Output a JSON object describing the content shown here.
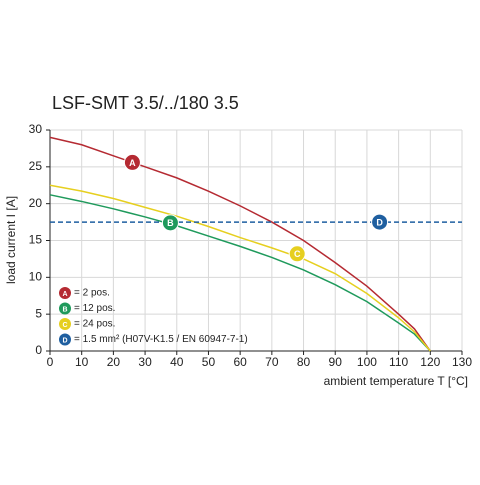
{
  "chart_data": {
    "type": "line",
    "title": "LSF-SMT 3.5/../180 3.5",
    "y_label": "load current I [A]",
    "x_label": "ambient temperature T [°C]",
    "xlim": [
      0,
      130
    ],
    "xticks": [
      0,
      10,
      20,
      30,
      40,
      50,
      60,
      70,
      80,
      90,
      100,
      110,
      120,
      130
    ],
    "ylim": [
      0,
      30
    ],
    "yticks": [
      0,
      5,
      10,
      15,
      20,
      25,
      30
    ],
    "grid": true,
    "legend": "lower left",
    "series": [
      {
        "name": "= 2 pos.",
        "color": "#b52a32",
        "label": "A",
        "label_x": 26,
        "label_y": 25.6,
        "x": [
          0,
          10,
          20,
          30,
          40,
          50,
          60,
          70,
          80,
          90,
          100,
          110,
          115,
          120
        ],
        "values": [
          29,
          28,
          26.5,
          25,
          23.5,
          21.7,
          19.7,
          17.5,
          15,
          12,
          8.8,
          5,
          3,
          0
        ]
      },
      {
        "name": "= 12 pos.",
        "color": "#1f9a5c",
        "label": "B",
        "label_x": 38,
        "label_y": 17.4,
        "x": [
          0,
          10,
          20,
          30,
          40,
          50,
          60,
          70,
          80,
          90,
          100,
          110,
          115,
          120
        ],
        "values": [
          21.2,
          20.3,
          19.3,
          18.2,
          17,
          15.6,
          14.2,
          12.7,
          11,
          9,
          6.7,
          3.8,
          2.3,
          0
        ]
      },
      {
        "name": "= 24 pos.",
        "color": "#e6cf1f",
        "label": "C",
        "label_x": 78,
        "label_y": 13.2,
        "x": [
          0,
          10,
          20,
          30,
          40,
          50,
          60,
          70,
          80,
          90,
          100,
          110,
          115,
          120
        ],
        "values": [
          22.5,
          21.7,
          20.7,
          19.5,
          18.3,
          16.9,
          15.4,
          14,
          12.5,
          10.5,
          7.8,
          4.5,
          2.6,
          0
        ]
      },
      {
        "name": "= 1.5 mm² (H07V-K1.5 / EN 60947-7-1)",
        "color": "#1f5fa0",
        "dashed": true,
        "label": "D",
        "label_x": 104,
        "label_y": 17.5,
        "x": [
          0,
          130
        ],
        "values": [
          17.5,
          17.5
        ]
      }
    ]
  }
}
